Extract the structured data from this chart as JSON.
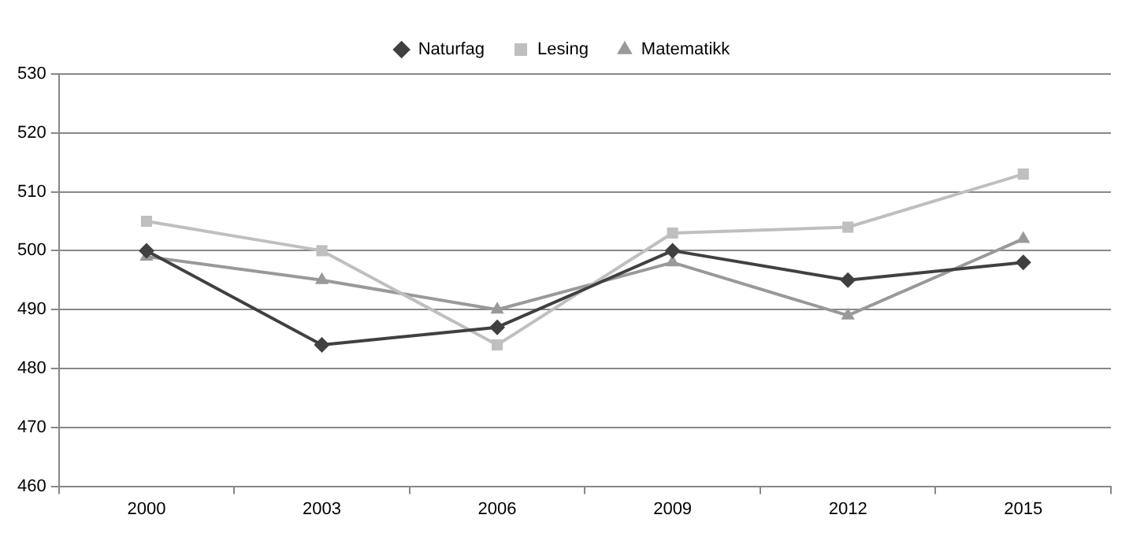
{
  "chart_data": {
    "type": "line",
    "categories": [
      "2000",
      "2003",
      "2006",
      "2009",
      "2012",
      "2015"
    ],
    "series": [
      {
        "name": "Naturfag",
        "color": "#404040",
        "marker": "diamond",
        "values": [
          500,
          484,
          487,
          500,
          495,
          498
        ]
      },
      {
        "name": "Lesing",
        "color": "#bfbfbf",
        "marker": "square",
        "values": [
          505,
          500,
          484,
          503,
          504,
          513
        ]
      },
      {
        "name": "Matematikk",
        "color": "#999999",
        "marker": "triangle",
        "values": [
          499,
          495,
          490,
          498,
          489,
          502
        ]
      }
    ],
    "ylim": [
      460,
      530
    ],
    "yticks": [
      460,
      470,
      480,
      490,
      500,
      510,
      520,
      530
    ],
    "grid": "y",
    "legend": "top",
    "line_style": "solid"
  }
}
